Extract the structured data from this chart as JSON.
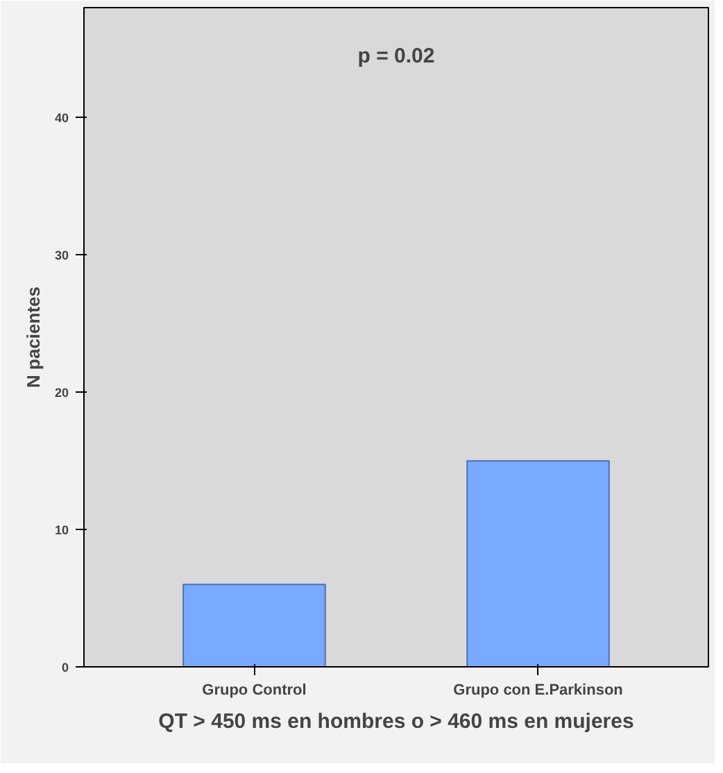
{
  "chart_data": {
    "type": "bar",
    "categories": [
      "Grupo Control",
      "Grupo con E.Parkinson"
    ],
    "values": [
      6,
      15
    ],
    "color": "#7aaaff",
    "ylabel": "N pacientes",
    "xlabel": "QT > 450 ms en hombres o > 460 ms en mujeres",
    "ylim": [
      0,
      48
    ],
    "yticks": [
      0,
      10,
      20,
      30,
      40
    ],
    "grid": false,
    "annotations": [
      "p = 0.02"
    ]
  }
}
